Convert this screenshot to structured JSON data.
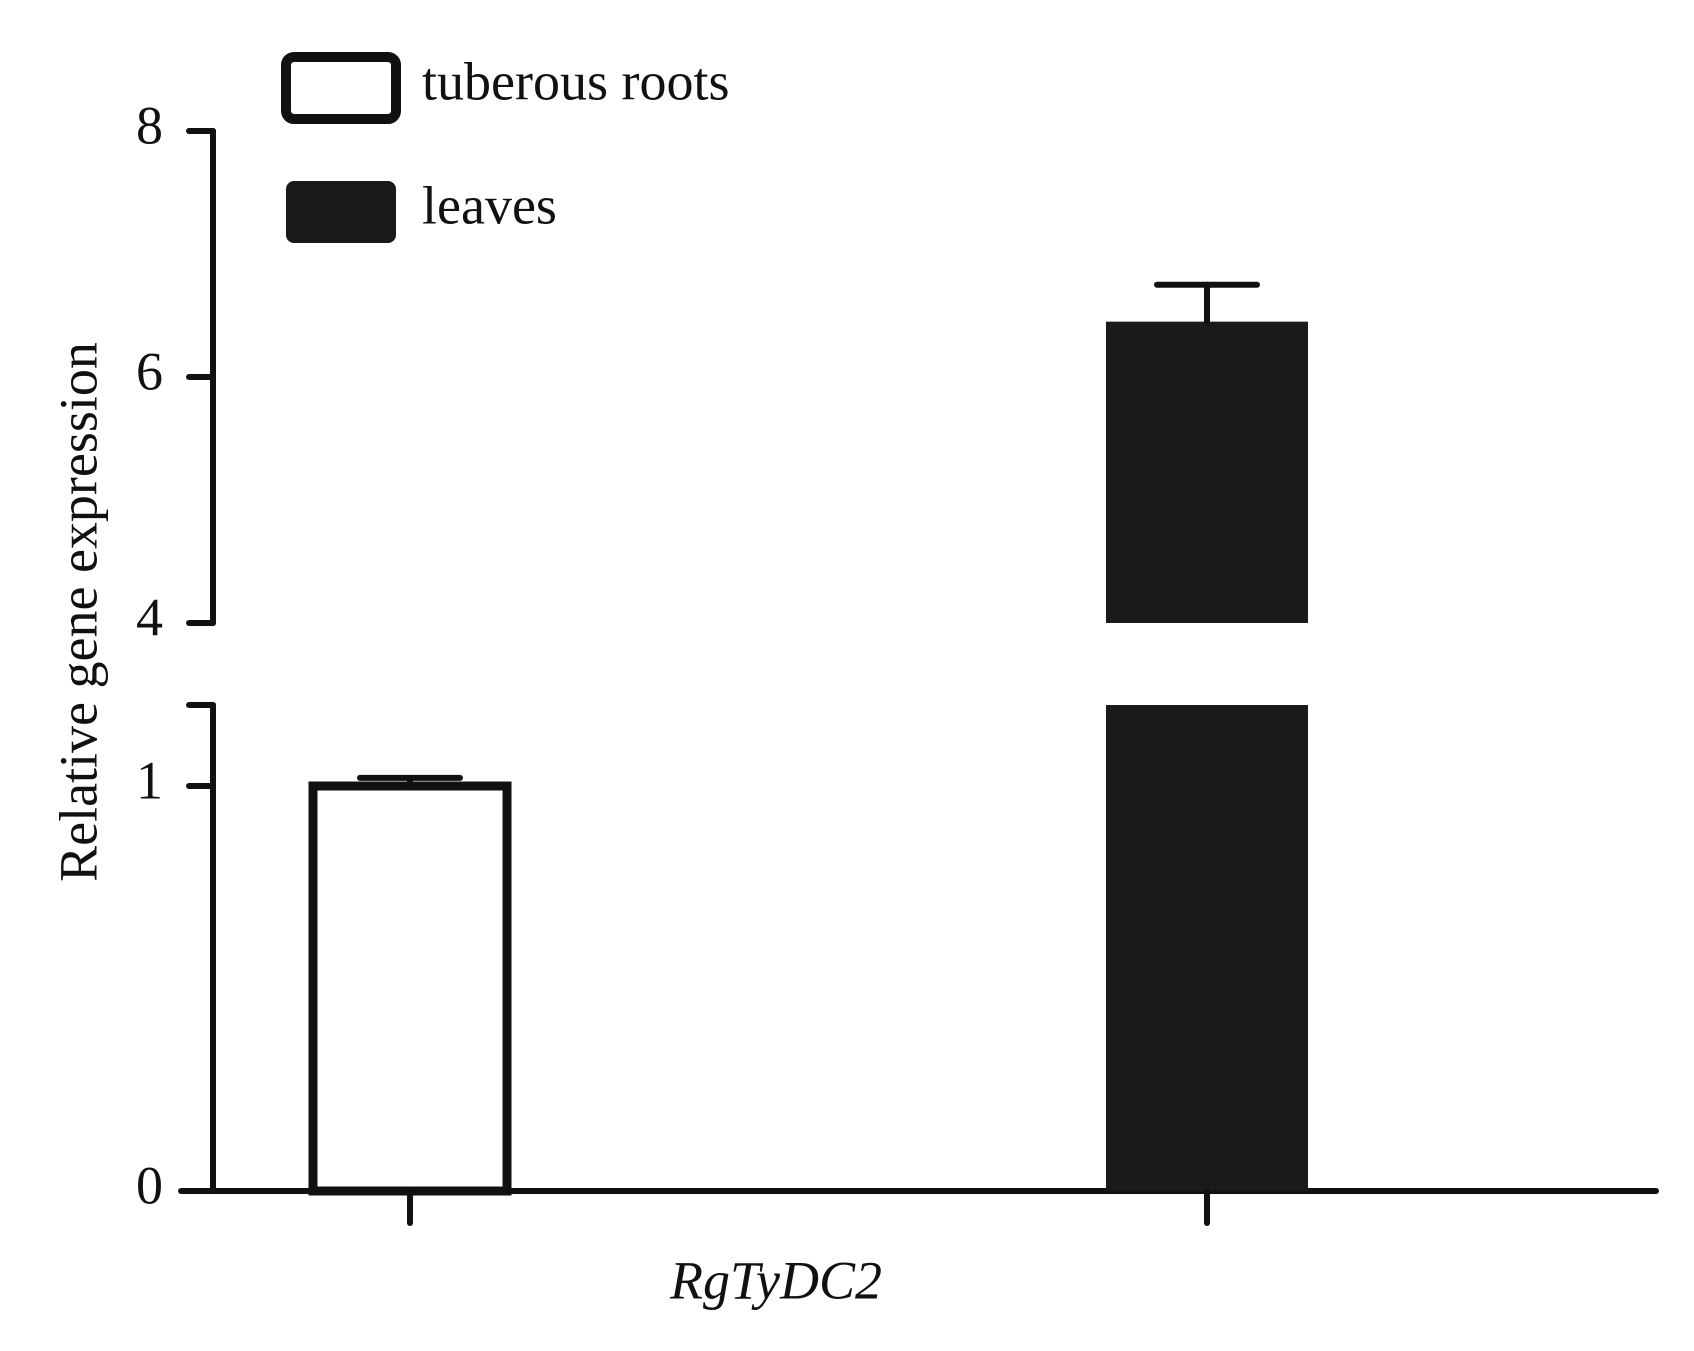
{
  "chart_data": {
    "type": "bar",
    "y_label": "Relative gene expression",
    "categories": [
      "RgTyDC2"
    ],
    "series": [
      {
        "name": "tuberous roots",
        "color": "#ffffff",
        "values": [
          1
        ],
        "errors": [
          0.02
        ]
      },
      {
        "name": "leaves",
        "color": "#1a1a1a",
        "values": [
          6.45
        ],
        "errors": [
          0.3
        ]
      }
    ],
    "ylim": [
      0,
      8
    ],
    "ybreak": [
      1.2,
      4
    ],
    "yticks": [
      0,
      1,
      4,
      6,
      8
    ]
  }
}
